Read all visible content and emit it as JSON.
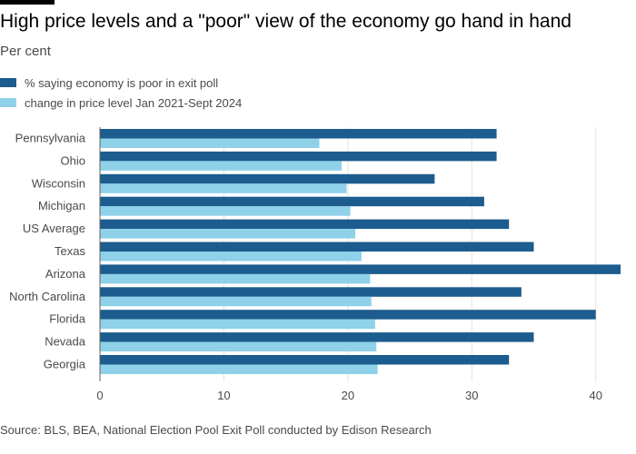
{
  "title": "High price levels and a \"poor\" view of the economy go hand in hand",
  "subtitle": "Per cent",
  "source": "Source: BLS, BEA, National Election Pool Exit Poll conducted by Edison Research",
  "colors": {
    "series1": "#1d5c8e",
    "series2": "#8fd1e8",
    "grid": "#e6e1dc",
    "text": "#4a4a4a"
  },
  "chart_data": {
    "type": "bar",
    "orientation": "horizontal",
    "title": "High price levels and a \"poor\" view of the economy go hand in hand",
    "subtitle": "Per cent",
    "categories": [
      "Pennsylvania",
      "Ohio",
      "Wisconsin",
      "Michigan",
      "US Average",
      "Texas",
      "Arizona",
      "North Carolina",
      "Florida",
      "Nevada",
      "Georgia"
    ],
    "series": [
      {
        "name": "% saying economy is poor in exit poll",
        "values": [
          32,
          32,
          27,
          31,
          33,
          35,
          42,
          34,
          40,
          35,
          33
        ]
      },
      {
        "name": "change in price level Jan 2021-Sept 2024",
        "values": [
          17.7,
          19.5,
          19.9,
          20.2,
          20.6,
          21.1,
          21.8,
          21.9,
          22.2,
          22.3,
          22.4
        ]
      }
    ],
    "xlim": [
      0,
      42
    ],
    "xticks": [
      0,
      10,
      20,
      30,
      40
    ],
    "grid": true,
    "legend": "top-left"
  }
}
